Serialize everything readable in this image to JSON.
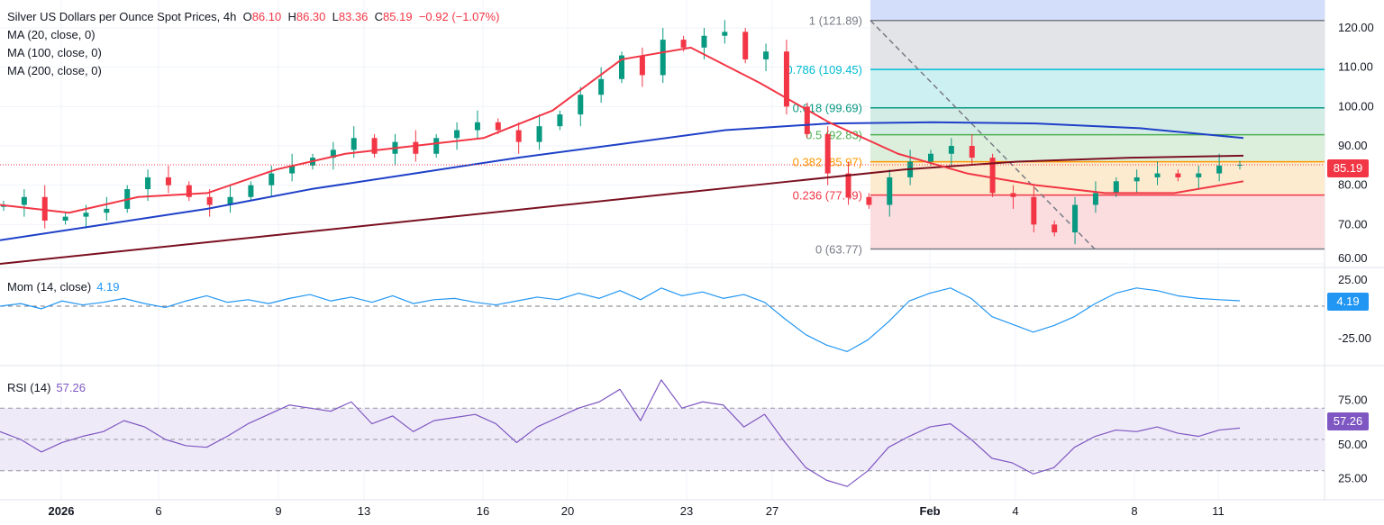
{
  "header": {
    "title": "Silver US Dollars per Ounce Spot Prices, 4h",
    "open_label": "O",
    "open": "86.10",
    "high_label": "H",
    "high": "86.30",
    "low_label": "L",
    "low": "83.36",
    "close_label": "C",
    "close": "85.19",
    "change": "−0.92 (−1.07%)",
    "indicators": [
      "MA (20, close, 0)",
      "MA (100, close, 0)",
      "MA (200, close, 0)"
    ]
  },
  "colors": {
    "up": "#089981",
    "down": "#f23645",
    "ma20": "#f23645",
    "ma100": "#1e40c8",
    "ma200": "#7a1020",
    "mom": "#2196f3",
    "rsi": "#7e57c2"
  },
  "momentum": {
    "label": "Mom (14, close)",
    "value": "4.19"
  },
  "rsi": {
    "label": "RSI (14)",
    "value": "57.26"
  },
  "price_tag": "85.19",
  "chart_data": [
    {
      "type": "candlestick",
      "title": "Silver US Dollars per Ounce Spot Prices, 4h",
      "ylim": [
        60,
        124
      ],
      "yticks": [
        "120.00",
        "110.00",
        "100.00",
        "90.00",
        "80.00",
        "70.00",
        "60.00"
      ],
      "xticks": [
        "2026",
        "6",
        "9",
        "13",
        "16",
        "20",
        "23",
        "27",
        "Feb",
        "4",
        "8",
        "11"
      ],
      "closes": [
        75,
        77,
        71,
        72,
        73,
        74,
        79,
        82,
        80,
        77,
        75,
        77,
        80,
        83,
        85,
        87,
        89,
        92,
        88,
        91,
        88,
        92,
        94,
        96,
        94,
        91,
        95,
        98,
        103,
        107,
        113,
        108,
        117,
        115,
        118,
        119,
        112,
        114,
        100,
        93,
        83,
        77,
        75,
        82,
        86,
        88,
        90,
        87,
        78,
        77,
        70,
        68,
        75,
        78,
        81,
        82,
        83,
        82,
        83,
        85,
        85.19
      ],
      "ma20": [
        75,
        73,
        77,
        78,
        84,
        88,
        90,
        92,
        99,
        112,
        115,
        106,
        96,
        88,
        83,
        80,
        78,
        78,
        81
      ],
      "ma100": [
        66,
        70,
        74,
        79,
        83,
        87,
        90.5,
        94,
        95.7,
        96,
        95.7,
        94.5,
        92
      ],
      "ma200": [
        60,
        63,
        66,
        69,
        72,
        75,
        78,
        81,
        84,
        86,
        87,
        87.5
      ],
      "fibonacci": {
        "levels": [
          {
            "ratio": "1",
            "price": "121.89",
            "label": "1 (121.89)",
            "color": "#787b86"
          },
          {
            "ratio": "0.786",
            "price": "109.45",
            "label": "0.786 (109.45)",
            "color": "#00bcd4"
          },
          {
            "ratio": "0.618",
            "price": "99.69",
            "label": "0.618 (99.69)",
            "color": "#089981"
          },
          {
            "ratio": "0.5",
            "price": "92.83",
            "label": "0.5 (92.83)",
            "color": "#4caf50"
          },
          {
            "ratio": "0.382",
            "price": "85.97",
            "label": "0.382 (85.97)",
            "color": "#ff9800"
          },
          {
            "ratio": "0.236",
            "price": "77.49",
            "label": "0.236 (77.49)",
            "color": "#f23645"
          },
          {
            "ratio": "0",
            "price": "63.77",
            "label": "0 (63.77)",
            "color": "#787b86"
          }
        ]
      }
    },
    {
      "type": "line",
      "title": "Mom (14, close)",
      "ylim": [
        -40,
        28
      ],
      "yticks": [
        "25.00",
        "-25.00"
      ],
      "values": [
        0,
        2,
        -2,
        4,
        1,
        3,
        6,
        2,
        -1,
        4,
        8,
        3,
        5,
        2,
        6,
        9,
        4,
        7,
        3,
        8,
        2,
        5,
        6,
        3,
        1,
        4,
        7,
        5,
        10,
        6,
        12,
        5,
        14,
        8,
        11,
        6,
        9,
        3,
        -10,
        -22,
        -30,
        -35,
        -26,
        -12,
        4,
        10,
        14,
        6,
        -8,
        -14,
        -20,
        -15,
        -8,
        2,
        10,
        14,
        12,
        8,
        6,
        5,
        4.19
      ]
    },
    {
      "type": "line",
      "title": "RSI (14)",
      "ylim": [
        15,
        95
      ],
      "yticks": [
        "75.00",
        "50.00",
        "25.00"
      ],
      "bands": [
        70,
        50,
        30
      ],
      "values": [
        55,
        50,
        42,
        48,
        52,
        55,
        62,
        58,
        50,
        46,
        45,
        52,
        60,
        66,
        72,
        70,
        68,
        74,
        60,
        65,
        55,
        62,
        64,
        66,
        60,
        48,
        58,
        64,
        70,
        74,
        82,
        62,
        88,
        70,
        74,
        72,
        58,
        66,
        48,
        32,
        24,
        20,
        30,
        45,
        52,
        58,
        60,
        50,
        38,
        35,
        28,
        32,
        45,
        52,
        56,
        55,
        58,
        54,
        52,
        56,
        57.26
      ]
    }
  ]
}
